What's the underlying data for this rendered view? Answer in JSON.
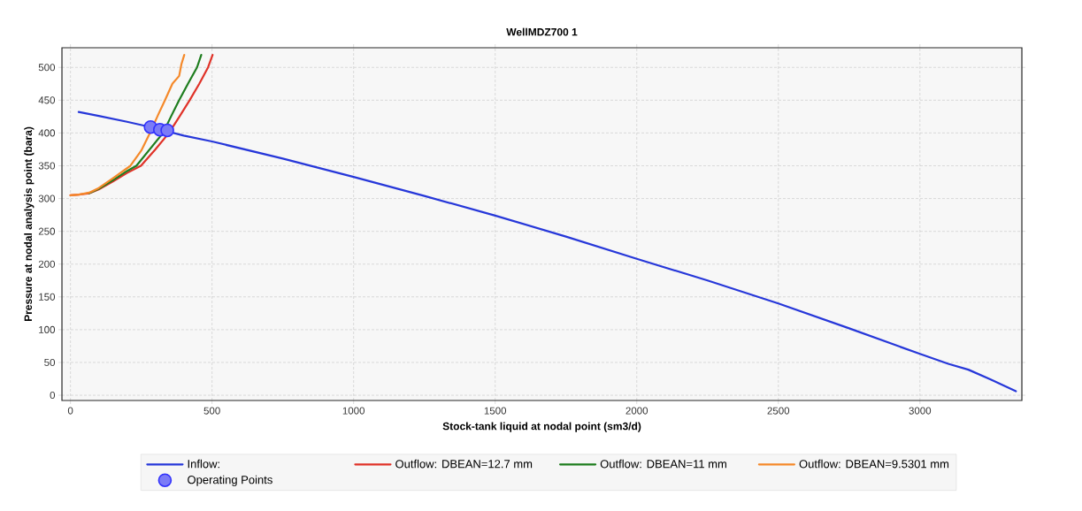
{
  "chart_data": {
    "type": "line",
    "title": "WellMDZ700 1",
    "xlabel": "Stock-tank liquid at nodal point (sm3/d)",
    "ylabel": "Pressure at nodal analysis point (bara)",
    "xlim": [
      -30,
      3360
    ],
    "ylim": [
      -8,
      530
    ],
    "xticks": [
      0,
      500,
      1000,
      1500,
      2000,
      2500,
      3000
    ],
    "yticks": [
      0,
      50,
      100,
      150,
      200,
      250,
      300,
      350,
      400,
      450,
      500
    ],
    "grid": true,
    "legend": "bottom",
    "marker": "none",
    "series": [
      {
        "name": "Inflow:",
        "color": "#2637d9",
        "x": [
          29,
          100,
          200,
          283,
          400,
          500,
          750,
          1000,
          1250,
          1500,
          1750,
          2000,
          2250,
          2500,
          2750,
          3000,
          3100,
          3171,
          3250,
          3339
        ],
        "values": [
          432,
          426,
          417,
          409,
          396,
          387,
          361,
          333,
          304,
          274,
          242,
          208,
          175,
          140,
          102,
          63,
          48,
          39,
          24,
          6
        ]
      },
      {
        "name": "Outflow: DBEAN=12.7 mm",
        "color": "#e03228",
        "x": [
          0,
          30,
          66,
          100,
          150,
          200,
          249,
          300,
          348,
          385,
          421,
          455,
          486,
          502
        ],
        "values": [
          305,
          306,
          308,
          314,
          326,
          339,
          350,
          375,
          400,
          425,
          450,
          475,
          500,
          519
        ]
      },
      {
        "name": "Outflow: DBEAN=11 mm",
        "color": "#1e7d1e",
        "x": [
          66,
          100,
          150,
          200,
          233,
          280,
          327,
          355,
          384,
          415,
          447,
          462
        ],
        "values": [
          308,
          315,
          328,
          342,
          350,
          375,
          400,
          425,
          450,
          475,
          500,
          519
        ]
      },
      {
        "name": "Outflow: DBEAN=9.5301 mm",
        "color": "#f5892a",
        "x": [
          0,
          30,
          66,
          100,
          150,
          212,
          250,
          283,
          310,
          334,
          360,
          384,
          392,
          402
        ],
        "values": [
          305,
          306,
          309,
          316,
          331,
          350,
          373,
          402,
          428,
          450,
          475,
          487,
          505,
          519
        ]
      },
      {
        "name": "Operating Points",
        "type": "scatter",
        "marker": "circle",
        "color": "#7b7bf7",
        "x": [
          283,
          316,
          342
        ],
        "values": [
          409,
          405,
          404
        ]
      }
    ]
  }
}
